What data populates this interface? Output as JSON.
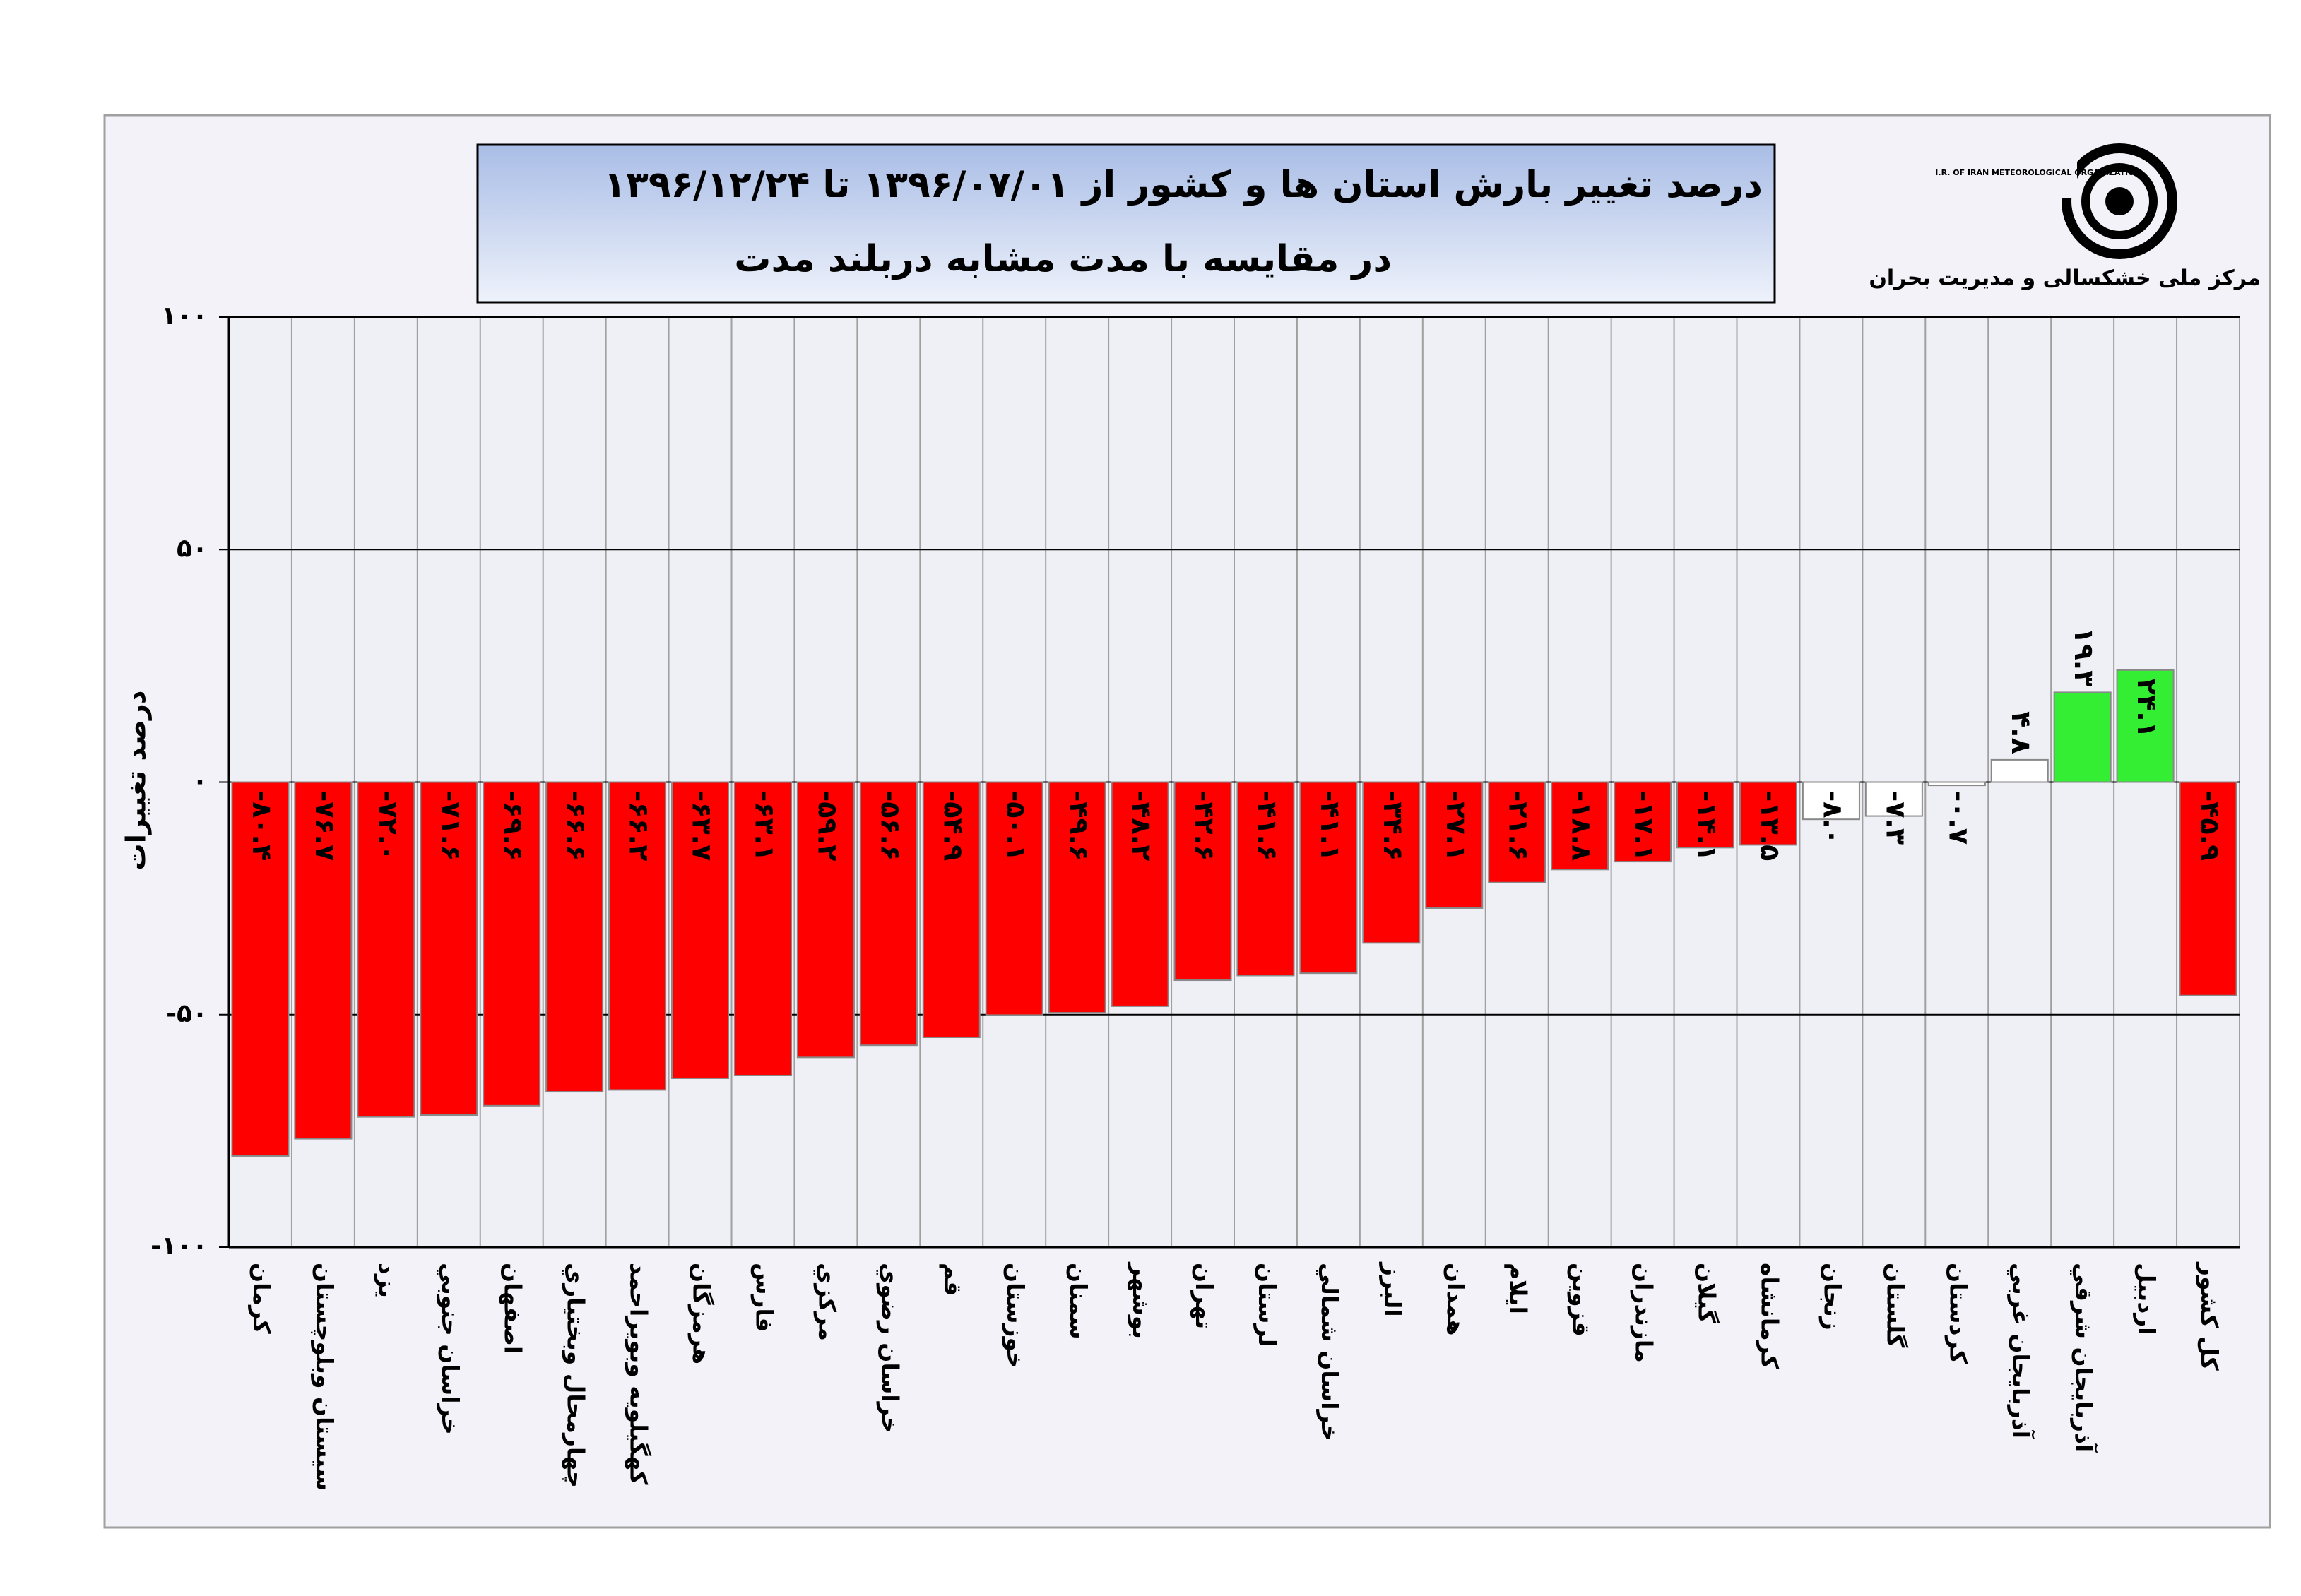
{
  "chart_data": {
    "type": "bar",
    "title": "درصد تغییر بارش استان ها و کشور از   ۱۳۹۶/۰۷/۰۱ تا ۱۳۹۶/۱۲/۲۴",
    "subtitle": "در مقایسه با مدت مشابه دربلند مدت",
    "y_label": "درصد تغییرات",
    "logo_caption": "مرکز ملی خشکسالی و مدیریت بحران",
    "logo_text": "I.R. OF IRAN METEOROLOGICAL ORGANIZATION",
    "categories": [
      "کرمان",
      "سیستان وبلوچستان",
      "یزد",
      "خراسان جنوبي",
      "اصفهان",
      "چهارمحال وبختياري",
      "کهگيلويه وبويراحمد",
      "هرمزگان",
      "فارس",
      "مرکزي",
      "خراسان رضوي",
      "قم",
      "خوزستان",
      "سمنان",
      "بوشهر",
      "تهران",
      "لرستان",
      "خراسان شمالي",
      "البرز",
      "همدان",
      "ايلام",
      "قزوين",
      "مازندران",
      "گيلان",
      "کرمانشاه",
      "زنجان",
      "گلستان",
      "کردستان",
      "آذربايجان غربي",
      "آذربايجان شرقي",
      "اردبيل",
      "کل کشور"
    ],
    "values": [
      -80.4,
      -76.7,
      -72.0,
      -71.6,
      -69.6,
      -66.6,
      -66.2,
      -63.7,
      -63.1,
      -59.2,
      -56.6,
      -54.9,
      -50.1,
      -49.6,
      -48.2,
      -42.6,
      -41.6,
      -41.1,
      -34.6,
      -27.1,
      -21.6,
      -18.8,
      -17.1,
      -14.1,
      -13.5,
      -8.0,
      -7.3,
      -0.7,
      4.8,
      19.3,
      24.1,
      -45.9
    ],
    "value_labels": [
      "-۸۰.۴",
      "-۷۶.۷",
      "-۷۲.۰",
      "-۷۱.۶",
      "-۶۹.۶",
      "-۶۶.۶",
      "-۶۶.۲",
      "-۶۳.۷",
      "-۶۳.۱",
      "-۵۹.۲",
      "-۵۶.۶",
      "-۵۴.۹",
      "-۵۰.۱",
      "-۴۹.۶",
      "-۴۸.۲",
      "-۴۲.۶",
      "-۴۱.۶",
      "-۴۱.۱",
      "-۳۴.۶",
      "-۲۷.۱",
      "-۲۱.۶",
      "-۱۸.۸",
      "-۱۷.۱",
      "-۱۴.۱",
      "-۱۳.۵",
      "-۸.۰",
      "-۷.۳",
      "-۰.۷",
      "۴.۸",
      "۱۹.۳",
      "۲۴.۱",
      "-۴۵.۹"
    ],
    "colors": [
      "#ff0000",
      "#ff0000",
      "#ff0000",
      "#ff0000",
      "#ff0000",
      "#ff0000",
      "#ff0000",
      "#ff0000",
      "#ff0000",
      "#ff0000",
      "#ff0000",
      "#ff0000",
      "#ff0000",
      "#ff0000",
      "#ff0000",
      "#ff0000",
      "#ff0000",
      "#ff0000",
      "#ff0000",
      "#ff0000",
      "#ff0000",
      "#ff0000",
      "#ff0000",
      "#ff0000",
      "#ff0000",
      "#ffffff",
      "#ffffff",
      "#ffffff",
      "#ffffff",
      "#33ee33",
      "#33ee33",
      "#ff0000"
    ],
    "ylim": [
      -100,
      100
    ],
    "yticks": [
      {
        "value": -100,
        "label": "-۱۰۰"
      },
      {
        "value": -50,
        "label": "-۵۰"
      },
      {
        "value": 0,
        "label": "۰"
      },
      {
        "value": 50,
        "label": "۵۰"
      },
      {
        "value": 100,
        "label": "۱۰۰"
      }
    ],
    "grid": true
  }
}
